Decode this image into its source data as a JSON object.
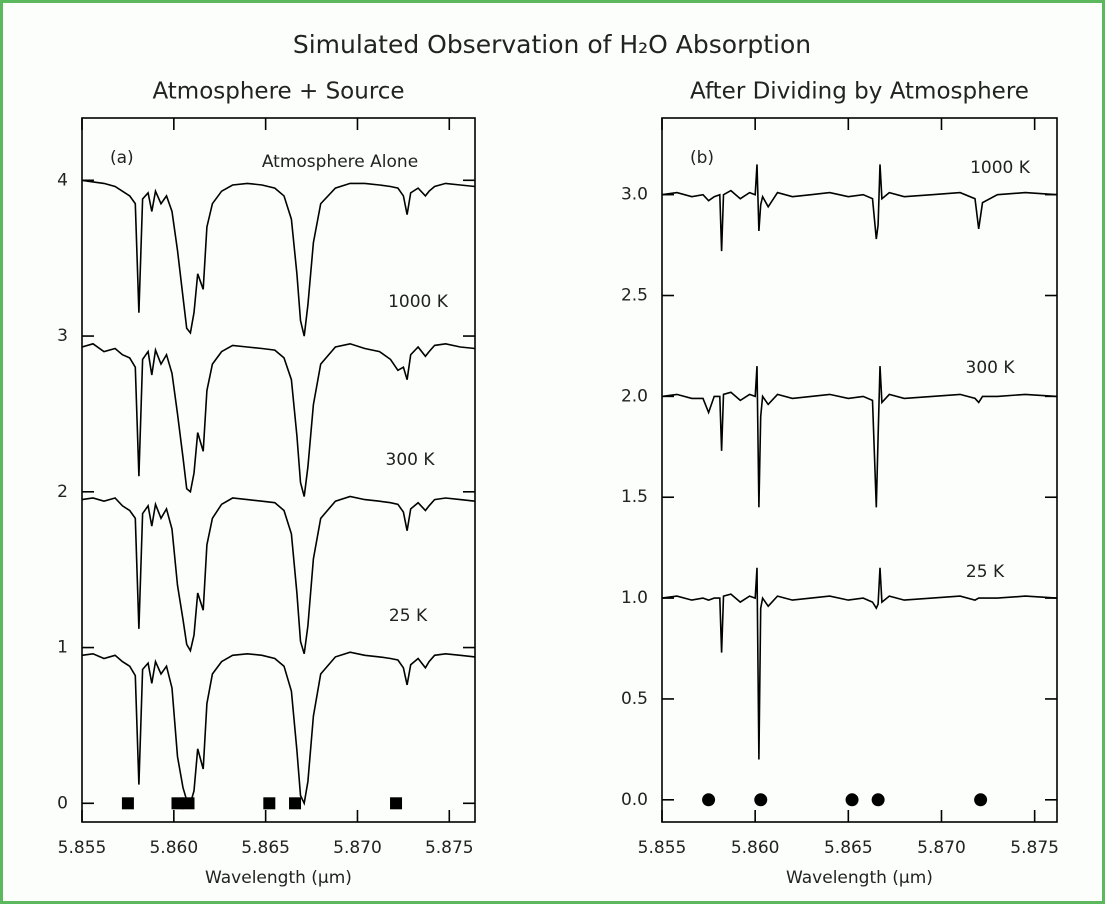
{
  "title": "Simulated Observation of H₂O Absorption",
  "chart_data": [
    {
      "type": "line",
      "title": "Atmosphere + Source",
      "panel_label": "(a)",
      "xlabel": "Wavelength (μm)",
      "xlim": [
        5.855,
        5.8764
      ],
      "ylim": [
        -0.12,
        4.4
      ],
      "xticks": [
        5.855,
        {
          "value": 5.86,
          "label": "5.860"
        },
        5.865,
        {
          "value": 5.87,
          "label": "5.870"
        },
        5.875
      ],
      "yticks": [
        0,
        1,
        2,
        3,
        4
      ],
      "x": [
        5.855,
        5.8556,
        5.8562,
        5.8568,
        5.8572,
        5.8576,
        5.8579,
        5.8581,
        5.8583,
        5.8586,
        5.8588,
        5.859,
        5.8593,
        5.8596,
        5.8599,
        5.8602,
        5.8605,
        5.8607,
        5.8609,
        5.8611,
        5.8613,
        5.8616,
        5.8618,
        5.8621,
        5.8626,
        5.8632,
        5.864,
        5.8648,
        5.8655,
        5.866,
        5.8664,
        5.8667,
        5.8669,
        5.8671,
        5.8673,
        5.8676,
        5.868,
        5.8688,
        5.8696,
        5.8704,
        5.8712,
        5.8718,
        5.8722,
        5.8725,
        5.8727,
        5.8729,
        5.8733,
        5.8737,
        5.8739,
        5.8742,
        5.8748,
        5.8756,
        5.8764
      ],
      "series": [
        {
          "name": "Atmosphere Alone",
          "color": "#000000",
          "values": [
            4.0,
            3.99,
            3.98,
            3.96,
            3.93,
            3.9,
            3.85,
            3.15,
            3.88,
            3.92,
            3.8,
            3.93,
            3.85,
            3.9,
            3.8,
            3.55,
            3.25,
            3.05,
            3.02,
            3.15,
            3.4,
            3.3,
            3.7,
            3.85,
            3.93,
            3.97,
            3.98,
            3.97,
            3.95,
            3.9,
            3.75,
            3.4,
            3.1,
            3.0,
            3.2,
            3.6,
            3.85,
            3.95,
            3.98,
            3.98,
            3.97,
            3.96,
            3.95,
            3.9,
            3.78,
            3.92,
            3.95,
            3.9,
            3.93,
            3.96,
            3.98,
            3.97,
            3.96
          ]
        },
        {
          "name": "1000 K",
          "color": "#000000",
          "values": [
            2.93,
            2.95,
            2.9,
            2.92,
            2.88,
            2.86,
            2.8,
            2.1,
            2.85,
            2.9,
            2.75,
            2.91,
            2.82,
            2.88,
            2.76,
            2.5,
            2.22,
            2.02,
            2.0,
            2.12,
            2.38,
            2.26,
            2.65,
            2.82,
            2.9,
            2.94,
            2.93,
            2.92,
            2.91,
            2.86,
            2.72,
            2.36,
            2.06,
            1.97,
            2.16,
            2.56,
            2.82,
            2.93,
            2.95,
            2.92,
            2.9,
            2.85,
            2.78,
            2.8,
            2.72,
            2.88,
            2.93,
            2.87,
            2.9,
            2.94,
            2.95,
            2.93,
            2.92
          ]
        },
        {
          "name": "300 K",
          "color": "#000000",
          "values": [
            1.95,
            1.96,
            1.94,
            1.96,
            1.91,
            1.88,
            1.83,
            1.12,
            1.86,
            1.91,
            1.78,
            1.92,
            1.83,
            1.89,
            1.76,
            1.4,
            1.18,
            1.02,
            0.98,
            1.08,
            1.35,
            1.24,
            1.66,
            1.83,
            1.92,
            1.96,
            1.95,
            1.94,
            1.93,
            1.88,
            1.73,
            1.35,
            1.04,
            0.96,
            1.14,
            1.57,
            1.83,
            1.94,
            1.97,
            1.95,
            1.94,
            1.93,
            1.92,
            1.87,
            1.75,
            1.89,
            1.93,
            1.88,
            1.91,
            1.95,
            1.96,
            1.95,
            1.94
          ]
        },
        {
          "name": "25 K",
          "color": "#000000",
          "values": [
            0.95,
            0.96,
            0.93,
            0.95,
            0.91,
            0.88,
            0.82,
            0.12,
            0.86,
            0.9,
            0.77,
            0.91,
            0.83,
            0.88,
            0.74,
            0.3,
            0.1,
            0.02,
            0.0,
            0.08,
            0.35,
            0.22,
            0.64,
            0.83,
            0.91,
            0.95,
            0.96,
            0.95,
            0.93,
            0.88,
            0.72,
            0.34,
            0.05,
            0.0,
            0.14,
            0.56,
            0.83,
            0.94,
            0.97,
            0.95,
            0.94,
            0.93,
            0.92,
            0.87,
            0.76,
            0.89,
            0.93,
            0.87,
            0.91,
            0.95,
            0.96,
            0.95,
            0.94
          ]
        }
      ],
      "line_markers": {
        "shape": "square",
        "x": [
          5.8575,
          5.8602,
          5.8608,
          5.8652,
          5.8666,
          5.8721
        ],
        "y": [
          0,
          0,
          0,
          0,
          0,
          0
        ]
      }
    },
    {
      "type": "line",
      "title": "After Dividing by Atmosphere",
      "panel_label": "(b)",
      "xlabel": "Wavelength (μm)",
      "xlim": [
        5.855,
        5.8762
      ],
      "ylim": [
        -0.11,
        3.38
      ],
      "xticks": [
        5.855,
        {
          "value": 5.86,
          "label": "5.860"
        },
        5.865,
        {
          "value": 5.87,
          "label": "5.870"
        },
        5.875
      ],
      "yticks": [
        {
          "value": 0,
          "label": "0.0"
        },
        0.5,
        {
          "value": 1,
          "label": "1.0"
        },
        1.5,
        {
          "value": 2,
          "label": "2.0"
        },
        2.5,
        {
          "value": 3,
          "label": "3.0"
        }
      ],
      "x": [
        5.855,
        5.8558,
        5.8566,
        5.8572,
        5.8575,
        5.8578,
        5.8581,
        5.8582,
        5.8583,
        5.8587,
        5.8592,
        5.8597,
        5.86,
        5.8601,
        5.8602,
        5.8603,
        5.8604,
        5.8607,
        5.8612,
        5.862,
        5.863,
        5.864,
        5.865,
        5.8658,
        5.8663,
        5.8665,
        5.8666,
        5.8667,
        5.8668,
        5.8672,
        5.868,
        5.8695,
        5.871,
        5.8718,
        5.872,
        5.8722,
        5.873,
        5.8745,
        5.8762
      ],
      "series": [
        {
          "name": "1000 K",
          "color": "#000000",
          "values": [
            3.0,
            3.01,
            2.99,
            3.0,
            2.97,
            2.99,
            3.0,
            2.72,
            3.0,
            3.02,
            2.98,
            3.01,
            3.0,
            3.15,
            2.82,
            2.95,
            2.99,
            2.94,
            3.01,
            2.99,
            3.0,
            3.01,
            2.99,
            3.0,
            2.98,
            2.78,
            2.85,
            3.15,
            2.98,
            3.01,
            2.99,
            3.0,
            3.01,
            2.98,
            2.83,
            2.96,
            3.0,
            3.01,
            3.0
          ]
        },
        {
          "name": "300 K",
          "color": "#000000",
          "values": [
            2.0,
            2.01,
            1.99,
            1.99,
            1.92,
            2.0,
            2.0,
            1.73,
            2.01,
            2.02,
            1.98,
            2.01,
            2.0,
            2.15,
            1.45,
            1.9,
            2.0,
            1.96,
            2.01,
            1.99,
            2.0,
            2.01,
            1.99,
            2.0,
            1.98,
            1.45,
            1.8,
            2.15,
            1.97,
            2.01,
            1.99,
            2.0,
            2.01,
            1.99,
            1.97,
            2.0,
            2.0,
            2.01,
            2.0
          ]
        },
        {
          "name": "25 K",
          "color": "#000000",
          "values": [
            1.0,
            1.01,
            0.99,
            1.0,
            0.99,
            1.0,
            1.0,
            0.73,
            1.01,
            1.02,
            0.98,
            1.01,
            1.0,
            1.15,
            0.2,
            0.95,
            1.0,
            0.96,
            1.01,
            0.99,
            1.0,
            1.01,
            0.99,
            1.0,
            0.98,
            0.95,
            0.97,
            1.15,
            0.98,
            1.01,
            0.99,
            1.0,
            1.01,
            0.99,
            1.0,
            1.0,
            1.0,
            1.01,
            1.0
          ]
        }
      ],
      "line_markers": {
        "shape": "circle",
        "x": [
          5.8575,
          5.8603,
          5.8652,
          5.8666,
          5.8721
        ],
        "y": [
          0,
          0,
          0,
          0,
          0
        ]
      }
    }
  ]
}
